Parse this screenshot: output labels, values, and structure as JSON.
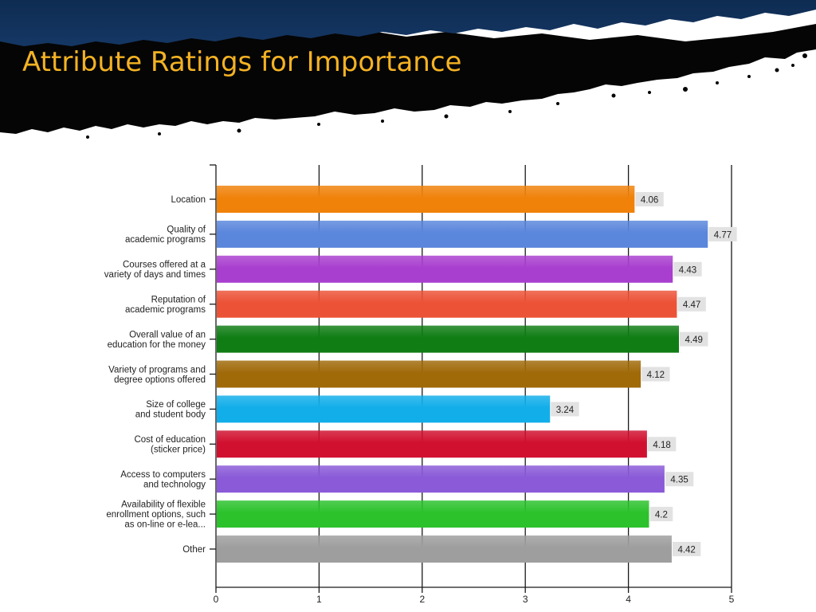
{
  "slide": {
    "title": "Attribute Ratings for Importance"
  },
  "chart_data": {
    "type": "bar",
    "orientation": "horizontal",
    "title": "",
    "xlabel": "",
    "ylabel": "",
    "xlim": [
      0,
      5
    ],
    "x_ticks": [
      "0",
      "1",
      "2",
      "3",
      "4",
      "5"
    ],
    "grid": true,
    "categories": [
      [
        "Location"
      ],
      [
        "Quality of",
        "academic programs"
      ],
      [
        "Courses offered at a",
        "variety of days and times"
      ],
      [
        "Reputation of",
        "academic programs"
      ],
      [
        "Overall value of an",
        "education for the money"
      ],
      [
        "Variety of programs and",
        "degree options offered"
      ],
      [
        "Size of college",
        "and student body"
      ],
      [
        "Cost of education",
        "(sticker price)"
      ],
      [
        "Access to computers",
        "and technology"
      ],
      [
        "Availability of flexible",
        "enrollment options, such",
        "as on-line or e-lea..."
      ],
      [
        "Other"
      ]
    ],
    "values": [
      4.06,
      4.77,
      4.43,
      4.47,
      4.49,
      4.12,
      3.24,
      4.18,
      4.35,
      4.2,
      4.42
    ],
    "value_labels": [
      "4.06",
      "4.77",
      "4.43",
      "4.47",
      "4.49",
      "4.12",
      "3.24",
      "4.18",
      "4.35",
      "4.2",
      "4.42"
    ],
    "colors": [
      "#f0820a",
      "#5a86dc",
      "#a93fcf",
      "#ec5236",
      "#0f7d14",
      "#a06a09",
      "#12aeea",
      "#d1102f",
      "#8a5ad8",
      "#2cc22c",
      "#9e9e9e"
    ]
  }
}
